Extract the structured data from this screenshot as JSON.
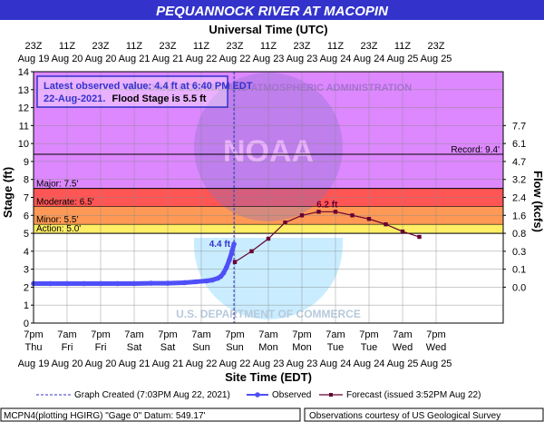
{
  "title": "PEQUANNOCK RIVER AT MACOPIN",
  "top_axis_title": "Universal Time (UTC)",
  "bottom_axis_title": "Site Time (EDT)",
  "colors": {
    "banner": "#3333cc",
    "banner_text": "#ffffff",
    "record_zone": "#dd88ff",
    "major_zone": "#ff5555",
    "moderate_zone": "#ff9955",
    "minor_zone": "#ffee66",
    "action_zone": "#ffff99",
    "observed": "#4f4ff7",
    "forecast": "#660033",
    "info_text": "#3333cc",
    "current_line": "#3333cc"
  },
  "info_box": {
    "line1": "Latest observed value:  4.4 ft at 6:40 PM EDT",
    "line2_date": "22-Aug-2021.",
    "line2_flood": "Flood Stage is 5.5 ft"
  },
  "watermark": {
    "agency_top": "NATIONAL OCEANIC AND ATMOSPHERIC ADMINISTRATION",
    "agency_bottom": "U.S. DEPARTMENT OF COMMERCE",
    "logo": "NOAA"
  },
  "legend": {
    "graph_created": "Graph Created (7:03PM Aug 22, 2021)",
    "observed": "Observed",
    "forecast": "Forecast (issued 3:52PM Aug 22)"
  },
  "footer": {
    "left": "MCPN4(plotting HGIRG) \"Gage 0\" Datum:  549.17'",
    "right": "Observations courtesy of US Geological Survey"
  },
  "chart_data": {
    "type": "line",
    "left_axis": {
      "label": "Stage (ft)",
      "ylim": [
        0,
        14
      ],
      "ticks": [
        0,
        1,
        2,
        3,
        4,
        5,
        6,
        7,
        8,
        9,
        10,
        11,
        12,
        13,
        14
      ]
    },
    "right_axis": {
      "label": "Flow (kcfs)",
      "ticks": [
        {
          "stage": 2.0,
          "label": "0.0"
        },
        {
          "stage": 3.0,
          "label": "0.1"
        },
        {
          "stage": 4.0,
          "label": "0.3"
        },
        {
          "stage": 5.0,
          "label": "0.8"
        },
        {
          "stage": 6.0,
          "label": "1.6"
        },
        {
          "stage": 7.0,
          "label": "2.4"
        },
        {
          "stage": 8.0,
          "label": "3.2"
        },
        {
          "stage": 9.0,
          "label": "4.7"
        },
        {
          "stage": 10.0,
          "label": "6.1"
        },
        {
          "stage": 11.0,
          "label": "7.7"
        }
      ]
    },
    "x_range_hours": [
      0,
      168
    ],
    "bottom_ticks": [
      {
        "time": "7pm",
        "day": "Thu",
        "date": "Aug 19"
      },
      {
        "time": "7am",
        "day": "Fri",
        "date": "Aug 20"
      },
      {
        "time": "7pm",
        "day": "Fri",
        "date": "Aug 20"
      },
      {
        "time": "7am",
        "day": "Sat",
        "date": "Aug 21"
      },
      {
        "time": "7pm",
        "day": "Sat",
        "date": "Aug 21"
      },
      {
        "time": "7am",
        "day": "Sun",
        "date": "Aug 22"
      },
      {
        "time": "7pm",
        "day": "Sun",
        "date": "Aug 22"
      },
      {
        "time": "7am",
        "day": "Mon",
        "date": "Aug 23"
      },
      {
        "time": "7pm",
        "day": "Mon",
        "date": "Aug 23"
      },
      {
        "time": "7am",
        "day": "Tue",
        "date": "Aug 24"
      },
      {
        "time": "7pm",
        "day": "Tue",
        "date": "Aug 24"
      },
      {
        "time": "7am",
        "day": "Wed",
        "date": "Aug 25"
      },
      {
        "time": "7pm",
        "day": "Wed",
        "date": "Aug 25"
      }
    ],
    "top_ticks": [
      {
        "time": "23Z",
        "date": "Aug 19"
      },
      {
        "time": "11Z",
        "date": "Aug 20"
      },
      {
        "time": "23Z",
        "date": "Aug 20"
      },
      {
        "time": "11Z",
        "date": "Aug 21"
      },
      {
        "time": "23Z",
        "date": "Aug 21"
      },
      {
        "time": "11Z",
        "date": "Aug 22"
      },
      {
        "time": "23Z",
        "date": "Aug 22"
      },
      {
        "time": "11Z",
        "date": "Aug 23"
      },
      {
        "time": "23Z",
        "date": "Aug 23"
      },
      {
        "time": "11Z",
        "date": "Aug 24"
      },
      {
        "time": "23Z",
        "date": "Aug 24"
      },
      {
        "time": "11Z",
        "date": "Aug 25"
      },
      {
        "time": "23Z",
        "date": "Aug 25"
      }
    ],
    "thresholds": [
      {
        "name": "Record",
        "label": "Record: 9.4'",
        "stage": 9.4
      },
      {
        "name": "Major",
        "label": "Major: 7.5'",
        "stage": 7.5
      },
      {
        "name": "Moderate",
        "label": "Moderate: 6.5'",
        "stage": 6.5
      },
      {
        "name": "Minor",
        "label": "Minor: 5.5'",
        "stage": 5.5
      },
      {
        "name": "Action",
        "label": "Action: 5.0'",
        "stage": 5.0
      }
    ],
    "current_time_hours": 71.7,
    "series": [
      {
        "name": "Observed",
        "x": [
          0,
          6,
          12,
          18,
          24,
          30,
          36,
          42,
          48,
          54,
          58,
          62,
          64,
          66,
          67,
          68,
          69,
          70,
          71,
          71.7
        ],
        "y": [
          2.2,
          2.2,
          2.2,
          2.2,
          2.2,
          2.2,
          2.2,
          2.22,
          2.22,
          2.25,
          2.3,
          2.35,
          2.4,
          2.5,
          2.6,
          2.8,
          3.1,
          3.5,
          4.0,
          4.4
        ]
      },
      {
        "name": "Forecast",
        "x": [
          72,
          78,
          84,
          90,
          96,
          102,
          108,
          114,
          120,
          126,
          132,
          138
        ],
        "y": [
          3.4,
          4.0,
          4.7,
          5.6,
          6.0,
          6.2,
          6.2,
          6.0,
          5.8,
          5.5,
          5.1,
          4.8
        ]
      }
    ],
    "annotations": [
      {
        "label": "4.4 ft",
        "x": 71.7,
        "y": 4.4
      },
      {
        "label": "6.2 ft",
        "x": 105,
        "y": 6.2
      }
    ]
  }
}
